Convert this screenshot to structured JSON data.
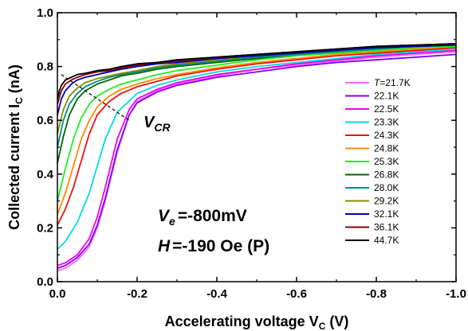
{
  "chart_data": {
    "type": "line",
    "xlabel": "Accelerating voltage V",
    "xlabel_sub": "C",
    "xlabel_unit": "(V)",
    "ylabel": "Collected current I",
    "ylabel_sub": "C",
    "ylabel_unit": "(nA)",
    "xlim": [
      0.0,
      -1.0
    ],
    "ylim": [
      0.0,
      1.0
    ],
    "xticks": [
      0.0,
      -0.2,
      -0.4,
      -0.6,
      -0.8,
      -1.0
    ],
    "xtick_labels": [
      "0.0",
      "-0.2",
      "-0.4",
      "-0.6",
      "-0.8",
      "-1.0"
    ],
    "yticks": [
      0.0,
      0.2,
      0.4,
      0.6,
      0.8,
      1.0
    ],
    "ytick_labels": [
      "0.0",
      "0.2",
      "0.4",
      "0.6",
      "0.8",
      "1.0"
    ],
    "grid": false,
    "legend_position": "right",
    "annotations": {
      "vcr_label": "V",
      "vcr_sub": "CR",
      "ve_label": "V",
      "ve_sub": "e",
      "ve_value": "=-800mV",
      "h_label": "H",
      "h_value": "=-190 Oe (P)"
    },
    "vcr_line": {
      "x": [
        -0.01,
        -0.18
      ],
      "y": [
        0.77,
        0.6
      ]
    },
    "series": [
      {
        "name": "T=21.7K",
        "legend_prefix": "T",
        "legend_value": "=21.7K",
        "color": "#ff66ff",
        "x": [
          0,
          -0.02,
          -0.05,
          -0.08,
          -0.1,
          -0.12,
          -0.15,
          -0.18,
          -0.2,
          -0.25,
          -0.3,
          -0.4,
          -0.5,
          -0.6,
          -0.7,
          -0.8,
          -0.9,
          -1.0
        ],
        "y": [
          0.04,
          0.05,
          0.08,
          0.13,
          0.2,
          0.3,
          0.48,
          0.62,
          0.67,
          0.71,
          0.735,
          0.765,
          0.79,
          0.805,
          0.82,
          0.835,
          0.845,
          0.855
        ]
      },
      {
        "name": "22.1K",
        "color": "#7f00ff",
        "x": [
          0,
          -0.02,
          -0.05,
          -0.08,
          -0.1,
          -0.12,
          -0.15,
          -0.18,
          -0.2,
          -0.25,
          -0.3,
          -0.4,
          -0.5,
          -0.6,
          -0.7,
          -0.8,
          -0.9,
          -1.0
        ],
        "y": [
          0.05,
          0.06,
          0.09,
          0.14,
          0.21,
          0.31,
          0.49,
          0.62,
          0.665,
          0.705,
          0.73,
          0.76,
          0.78,
          0.8,
          0.815,
          0.825,
          0.835,
          0.845
        ]
      },
      {
        "name": "22.5K",
        "color": "#ee00ee",
        "x": [
          0,
          -0.02,
          -0.05,
          -0.08,
          -0.1,
          -0.12,
          -0.15,
          -0.18,
          -0.2,
          -0.25,
          -0.3,
          -0.4,
          -0.5,
          -0.6,
          -0.7,
          -0.8,
          -0.9,
          -1.0
        ],
        "y": [
          0.06,
          0.07,
          0.1,
          0.16,
          0.24,
          0.35,
          0.53,
          0.64,
          0.68,
          0.715,
          0.74,
          0.77,
          0.79,
          0.81,
          0.825,
          0.84,
          0.85,
          0.86
        ]
      },
      {
        "name": "23.3K",
        "color": "#00dddd",
        "x": [
          0,
          -0.02,
          -0.05,
          -0.08,
          -0.1,
          -0.12,
          -0.15,
          -0.2,
          -0.25,
          -0.3,
          -0.4,
          -0.5,
          -0.6,
          -0.7,
          -0.8,
          -0.9,
          -1.0
        ],
        "y": [
          0.12,
          0.15,
          0.22,
          0.33,
          0.43,
          0.53,
          0.63,
          0.7,
          0.73,
          0.75,
          0.78,
          0.8,
          0.815,
          0.83,
          0.845,
          0.855,
          0.865
        ]
      },
      {
        "name": "24.3K",
        "color": "#ee1111",
        "x": [
          0,
          -0.02,
          -0.04,
          -0.06,
          -0.08,
          -0.1,
          -0.13,
          -0.16,
          -0.2,
          -0.25,
          -0.3,
          -0.4,
          -0.5,
          -0.6,
          -0.7,
          -0.8,
          -0.9,
          -1.0
        ],
        "y": [
          0.21,
          0.27,
          0.35,
          0.45,
          0.55,
          0.62,
          0.67,
          0.7,
          0.725,
          0.745,
          0.765,
          0.79,
          0.81,
          0.825,
          0.84,
          0.85,
          0.86,
          0.87
        ]
      },
      {
        "name": "24.8K",
        "color": "#ff8800",
        "x": [
          0,
          -0.02,
          -0.04,
          -0.06,
          -0.08,
          -0.1,
          -0.13,
          -0.16,
          -0.2,
          -0.25,
          -0.3,
          -0.4,
          -0.5,
          -0.6,
          -0.7,
          -0.8,
          -0.9,
          -1.0
        ],
        "y": [
          0.25,
          0.33,
          0.43,
          0.53,
          0.6,
          0.65,
          0.69,
          0.715,
          0.735,
          0.755,
          0.77,
          0.795,
          0.815,
          0.83,
          0.845,
          0.855,
          0.865,
          0.875
        ]
      },
      {
        "name": "25.3K",
        "color": "#22ee22",
        "x": [
          0,
          -0.02,
          -0.04,
          -0.06,
          -0.08,
          -0.1,
          -0.13,
          -0.16,
          -0.2,
          -0.25,
          -0.3,
          -0.4,
          -0.5,
          -0.6,
          -0.7,
          -0.8,
          -0.9,
          -1.0
        ],
        "y": [
          0.3,
          0.42,
          0.53,
          0.61,
          0.66,
          0.69,
          0.715,
          0.735,
          0.75,
          0.77,
          0.785,
          0.805,
          0.825,
          0.84,
          0.85,
          0.86,
          0.87,
          0.875
        ]
      },
      {
        "name": "26.8K",
        "color": "#006600",
        "x": [
          0,
          -0.015,
          -0.03,
          -0.05,
          -0.07,
          -0.1,
          -0.13,
          -0.16,
          -0.2,
          -0.25,
          -0.3,
          -0.4,
          -0.5,
          -0.6,
          -0.7,
          -0.8,
          -0.9,
          -1.0
        ],
        "y": [
          0.44,
          0.54,
          0.62,
          0.68,
          0.71,
          0.735,
          0.75,
          0.765,
          0.775,
          0.79,
          0.8,
          0.815,
          0.83,
          0.845,
          0.855,
          0.865,
          0.875,
          0.88
        ]
      },
      {
        "name": "28.0K",
        "color": "#008b8b",
        "x": [
          0,
          -0.015,
          -0.03,
          -0.05,
          -0.07,
          -0.1,
          -0.13,
          -0.16,
          -0.2,
          -0.25,
          -0.3,
          -0.4,
          -0.5,
          -0.6,
          -0.7,
          -0.8,
          -0.9,
          -1.0
        ],
        "y": [
          0.5,
          0.6,
          0.66,
          0.7,
          0.725,
          0.745,
          0.76,
          0.77,
          0.78,
          0.795,
          0.805,
          0.82,
          0.835,
          0.845,
          0.855,
          0.865,
          0.875,
          0.88
        ]
      },
      {
        "name": "29.2K",
        "color": "#8b8b00",
        "x": [
          0,
          -0.015,
          -0.03,
          -0.05,
          -0.07,
          -0.1,
          -0.13,
          -0.16,
          -0.2,
          -0.25,
          -0.3,
          -0.4,
          -0.5,
          -0.6,
          -0.7,
          -0.8,
          -0.9,
          -1.0
        ],
        "y": [
          0.55,
          0.64,
          0.69,
          0.72,
          0.74,
          0.755,
          0.765,
          0.775,
          0.785,
          0.8,
          0.81,
          0.825,
          0.84,
          0.85,
          0.86,
          0.87,
          0.875,
          0.88
        ]
      },
      {
        "name": "32.1K",
        "color": "#0000aa",
        "x": [
          0,
          -0.01,
          -0.02,
          -0.035,
          -0.05,
          -0.07,
          -0.1,
          -0.13,
          -0.16,
          -0.2,
          -0.25,
          -0.3,
          -0.4,
          -0.5,
          -0.6,
          -0.7,
          -0.8,
          -0.9,
          -1.0
        ],
        "y": [
          0.62,
          0.68,
          0.71,
          0.735,
          0.75,
          0.76,
          0.77,
          0.78,
          0.79,
          0.8,
          0.81,
          0.815,
          0.83,
          0.84,
          0.85,
          0.86,
          0.87,
          0.875,
          0.88
        ]
      },
      {
        "name": "36.1K",
        "color": "#8b0000",
        "x": [
          0,
          -0.01,
          -0.02,
          -0.035,
          -0.05,
          -0.07,
          -0.1,
          -0.13,
          -0.16,
          -0.2,
          -0.25,
          -0.3,
          -0.4,
          -0.5,
          -0.6,
          -0.7,
          -0.8,
          -0.9,
          -1.0
        ],
        "y": [
          0.66,
          0.71,
          0.735,
          0.75,
          0.76,
          0.77,
          0.78,
          0.785,
          0.795,
          0.805,
          0.815,
          0.82,
          0.835,
          0.845,
          0.855,
          0.865,
          0.875,
          0.88,
          0.885
        ]
      },
      {
        "name": "44.7K",
        "color": "#000000",
        "x": [
          0,
          -0.005,
          -0.01,
          -0.02,
          -0.035,
          -0.05,
          -0.07,
          -0.1,
          -0.13,
          -0.16,
          -0.2,
          -0.25,
          -0.3,
          -0.4,
          -0.5,
          -0.6,
          -0.7,
          -0.8,
          -0.9,
          -1.0
        ],
        "y": [
          0.68,
          0.71,
          0.73,
          0.75,
          0.76,
          0.77,
          0.775,
          0.785,
          0.79,
          0.8,
          0.81,
          0.815,
          0.825,
          0.835,
          0.845,
          0.855,
          0.865,
          0.875,
          0.88,
          0.885
        ]
      }
    ]
  }
}
